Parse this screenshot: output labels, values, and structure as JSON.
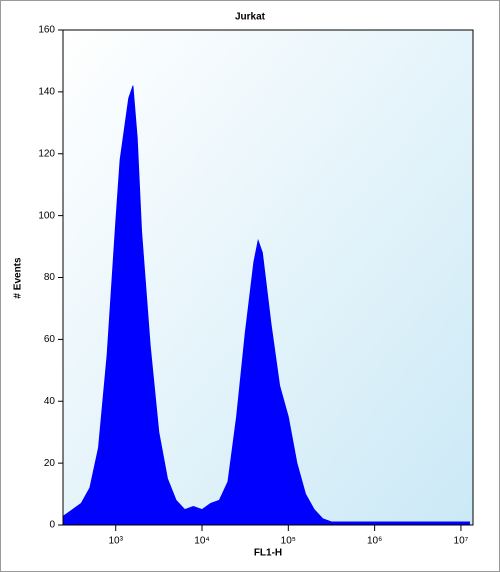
{
  "chart_data": {
    "type": "area",
    "title": "Jurkat",
    "xlabel": "FL1-H",
    "ylabel": "# Events",
    "xscale": "log",
    "color": "#0000ff",
    "x": [
      251,
      316,
      398,
      501,
      631,
      794,
      1000,
      1122,
      1259,
      1413,
      1585,
      1778,
      1995,
      2512,
      3162,
      3981,
      5012,
      6310,
      7943,
      10000,
      12589,
      15849,
      19953,
      25119,
      31623,
      39811,
      44668,
      50119,
      63096,
      79433,
      100000,
      125893,
      158489,
      199526,
      251189,
      316228,
      1000000,
      3162278,
      10000000,
      12589254
    ],
    "values": [
      3,
      5,
      7,
      12,
      25,
      55,
      98,
      118,
      128,
      138,
      142,
      125,
      95,
      58,
      30,
      15,
      8,
      5,
      6,
      5,
      7,
      8,
      14,
      35,
      62,
      85,
      92,
      88,
      65,
      45,
      35,
      20,
      10,
      5,
      2,
      1,
      1,
      1,
      1,
      1
    ],
    "xlim": [
      245,
      13800000
    ],
    "xticks": [
      {
        "value": 1000,
        "label": "10³"
      },
      {
        "value": 10000,
        "label": "10⁴"
      },
      {
        "value": 100000,
        "label": "10⁵"
      },
      {
        "value": 1000000,
        "label": "10⁶"
      },
      {
        "value": 10000000,
        "label": "10⁷"
      }
    ],
    "ylim": [
      0,
      160
    ],
    "yticks": [
      0,
      20,
      40,
      60,
      80,
      100,
      120,
      140,
      160
    ]
  }
}
